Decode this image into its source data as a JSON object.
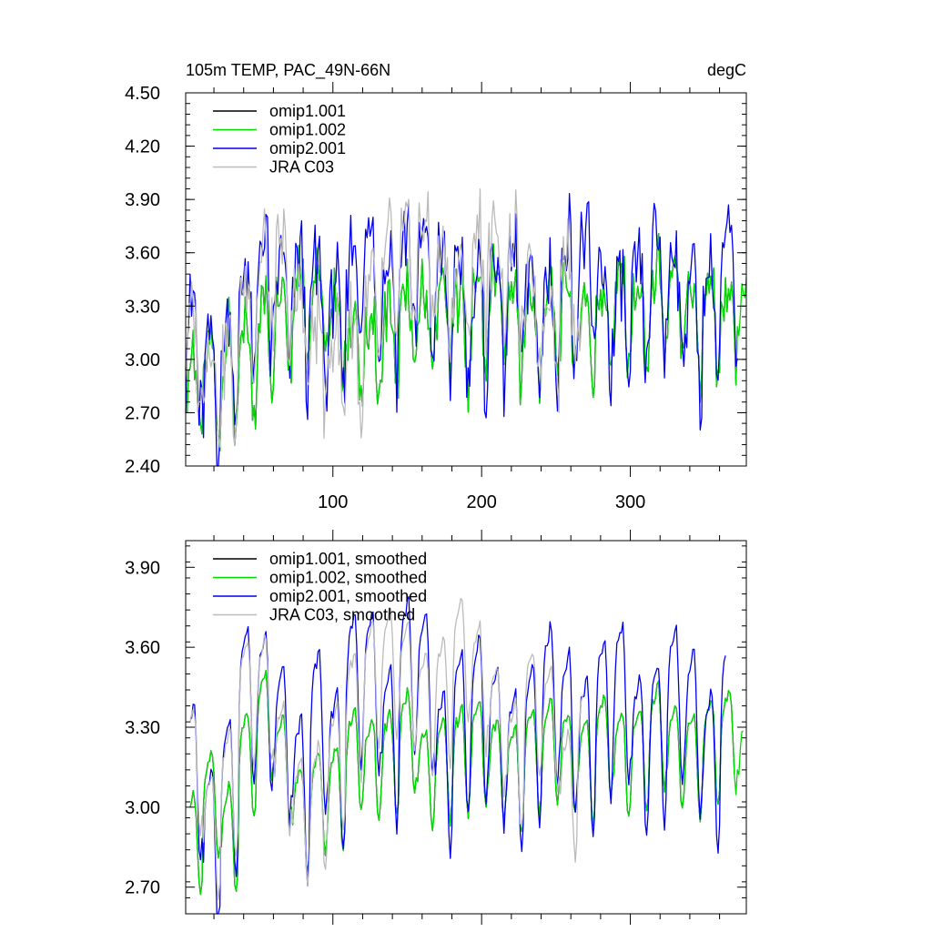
{
  "chart_data": [
    {
      "type": "line",
      "title": "105m TEMP, PAC_49N-66N",
      "units": "degC",
      "xlim": [
        1,
        378
      ],
      "ylim": [
        2.4,
        4.5
      ],
      "x_ticks": [
        100,
        200,
        300
      ],
      "x_tick_labels": [
        "100",
        "200",
        "300"
      ],
      "y_ticks": [
        2.4,
        2.7,
        3.0,
        3.3,
        3.6,
        3.9,
        4.2,
        4.5
      ],
      "y_tick_labels": [
        "2.40",
        "2.70",
        "3.00",
        "3.30",
        "3.60",
        "3.90",
        "4.20",
        "4.50"
      ],
      "legend_position": "top-left",
      "series": [
        {
          "name": "omip1.001",
          "color": "#000000",
          "x_start": 1,
          "x_end": 372,
          "base": [
            2.85,
            2.9,
            2.92,
            3.0,
            3.15,
            3.28,
            3.35,
            3.3,
            3.2,
            3.08,
            3.05,
            3.1,
            3.2,
            3.25,
            3.25,
            3.2,
            3.28,
            3.3,
            3.22,
            3.18,
            3.25,
            3.22,
            3.18,
            3.28,
            3.3,
            3.22,
            3.3,
            3.28,
            3.2,
            3.25,
            3.28,
            3.22,
            3.3,
            3.35,
            3.3,
            3.35,
            3.4,
            3.32
          ],
          "season_amp": 0.24,
          "noise_amp": 0.16
        },
        {
          "name": "omip1.002",
          "color": "#00dd00",
          "x_start": 1,
          "x_end": 378,
          "base": [
            2.85,
            2.9,
            2.92,
            3.0,
            3.15,
            3.28,
            3.35,
            3.3,
            3.2,
            3.08,
            3.05,
            3.1,
            3.2,
            3.25,
            3.25,
            3.2,
            3.28,
            3.3,
            3.22,
            3.18,
            3.25,
            3.22,
            3.18,
            3.28,
            3.3,
            3.22,
            3.3,
            3.28,
            3.2,
            3.25,
            3.28,
            3.22,
            3.3,
            3.35,
            3.3,
            3.35,
            3.4,
            3.32
          ],
          "season_amp": 0.24,
          "noise_amp": 0.16
        },
        {
          "name": "omip2.001",
          "color": "#0000ee",
          "x_start": 1,
          "x_end": 372,
          "base": [
            3.05,
            2.85,
            3.0,
            3.3,
            3.45,
            3.35,
            3.3,
            3.3,
            3.2,
            3.45,
            3.5,
            3.4,
            3.5,
            3.52,
            3.38,
            3.3,
            3.25,
            3.35,
            3.4,
            3.25,
            3.25,
            3.45,
            3.48,
            3.3,
            3.2,
            3.3,
            3.45,
            3.42,
            3.25,
            3.3,
            3.45,
            3.28,
            3.22,
            3.4,
            3.45,
            3.35,
            3.4,
            3.4
          ],
          "season_amp": 0.32,
          "noise_amp": 0.2
        },
        {
          "name": "JRA C03",
          "color": "#bbbbbb",
          "x_start": 1,
          "x_end": 268,
          "base": [
            3.05,
            2.95,
            2.9,
            3.3,
            3.45,
            3.45,
            3.2,
            3.05,
            3.0,
            3.05,
            3.25,
            3.5,
            3.55,
            3.6,
            3.45,
            3.4,
            3.55,
            3.6,
            3.45,
            3.3,
            3.2,
            3.45,
            3.2,
            3.1,
            3.3,
            3.3,
            3.2
          ],
          "season_amp": 0.26,
          "noise_amp": 0.2
        }
      ]
    },
    {
      "type": "line",
      "title": "",
      "xlim": [
        1,
        378
      ],
      "ylim": [
        2.6,
        4.0
      ],
      "x_ticks": [
        100,
        200,
        300
      ],
      "x_tick_labels": [],
      "y_ticks": [
        2.7,
        3.0,
        3.3,
        3.6,
        3.9
      ],
      "y_tick_labels": [
        "2.70",
        "3.00",
        "3.30",
        "3.60",
        "3.90"
      ],
      "legend_position": "top-left",
      "series": [
        {
          "name": "omip1.001, smoothed",
          "color": "#000000",
          "x_start": 4,
          "x_end": 370,
          "base": [
            2.9,
            3.05,
            2.92,
            3.2,
            3.35,
            3.2,
            3.0,
            3.05,
            3.08,
            3.22,
            3.18,
            3.2,
            3.28,
            3.15,
            3.18,
            3.22,
            3.25,
            3.18,
            3.15,
            3.22,
            3.25,
            3.2,
            3.18,
            3.28,
            3.2,
            3.22,
            3.3,
            3.22,
            3.2,
            3.25,
            3.3,
            3.18,
            3.22,
            3.35,
            3.25,
            3.35,
            3.45,
            3.35
          ],
          "season_amp": 0.18,
          "noise_amp": 0.02
        },
        {
          "name": "omip1.002, smoothed",
          "color": "#00dd00",
          "x_start": 4,
          "x_end": 376,
          "base": [
            2.9,
            3.05,
            2.92,
            3.2,
            3.35,
            3.2,
            3.0,
            3.05,
            3.08,
            3.22,
            3.18,
            3.2,
            3.28,
            3.15,
            3.18,
            3.22,
            3.25,
            3.18,
            3.15,
            3.22,
            3.25,
            3.2,
            3.18,
            3.28,
            3.2,
            3.22,
            3.3,
            3.22,
            3.2,
            3.25,
            3.3,
            3.18,
            3.22,
            3.35,
            3.25,
            3.35,
            3.45,
            3.35
          ],
          "season_amp": 0.18,
          "noise_amp": 0.02
        },
        {
          "name": "omip2.001, smoothed",
          "color": "#0000ee",
          "x_start": 4,
          "x_end": 364,
          "base": [
            3.15,
            2.9,
            3.1,
            3.45,
            3.42,
            3.3,
            3.1,
            3.35,
            3.2,
            3.5,
            3.5,
            3.3,
            3.55,
            3.5,
            3.2,
            3.35,
            3.4,
            3.3,
            3.2,
            3.3,
            3.45,
            3.35,
            3.25,
            3.4,
            3.45,
            3.25,
            3.3,
            3.45,
            3.35,
            3.2,
            3.4,
            3.35,
            3.1,
            3.35,
            3.45,
            3.3,
            3.4
          ],
          "season_amp": 0.28,
          "noise_amp": 0.02
        },
        {
          "name": "JRA C03, smoothed",
          "color": "#bbbbbb",
          "x_start": 4,
          "x_end": 268,
          "base": [
            3.18,
            2.95,
            3.1,
            3.45,
            3.45,
            3.2,
            3.0,
            3.05,
            3.2,
            3.4,
            3.5,
            3.55,
            3.5,
            3.4,
            3.45,
            3.6,
            3.5,
            3.35,
            3.2,
            3.4,
            3.35,
            3.1,
            3.3,
            3.3,
            3.2,
            3.3
          ],
          "season_amp": 0.22,
          "noise_amp": 0.02
        }
      ]
    }
  ]
}
